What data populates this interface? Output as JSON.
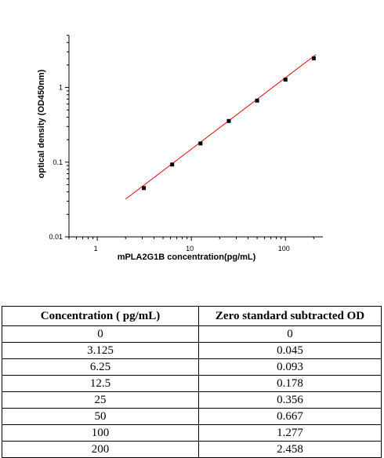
{
  "chart_data": {
    "type": "scatter",
    "xlabel": "mPLA2G1B  concentration(pg/mL)",
    "ylabel": "optical density (OD450nm)",
    "x_scale": "log",
    "y_scale": "log",
    "xlim": [
      0.5,
      250
    ],
    "ylim": [
      0.01,
      5
    ],
    "x_ticks": [
      {
        "value": 1,
        "label": "1"
      },
      {
        "value": 10,
        "label": "10"
      },
      {
        "value": 100,
        "label": "100"
      }
    ],
    "y_ticks": [
      {
        "value": 0.01,
        "label": "0.01"
      },
      {
        "value": 0.1,
        "label": "0.1"
      },
      {
        "value": 1,
        "label": "1"
      }
    ],
    "grid": false,
    "series": [
      {
        "type": "scatter",
        "color": "#000000",
        "x": [
          3.125,
          6.25,
          12.5,
          25,
          50,
          100,
          200
        ],
        "y": [
          0.045,
          0.093,
          0.178,
          0.356,
          0.667,
          1.277,
          2.458
        ]
      },
      {
        "type": "line",
        "color": "#e00000",
        "x": [
          2.0,
          210
        ],
        "y": [
          0.032,
          2.75
        ]
      }
    ]
  },
  "table": {
    "headers": [
      "Concentration ( pg/mL)",
      "Zero standard subtracted OD"
    ],
    "rows": [
      [
        "0",
        "0"
      ],
      [
        "3.125",
        "0.045"
      ],
      [
        "6.25",
        "0.093"
      ],
      [
        "12.5",
        "0.178"
      ],
      [
        "25",
        "0.356"
      ],
      [
        "50",
        "0.667"
      ],
      [
        "100",
        "1.277"
      ],
      [
        "200",
        "2.458"
      ]
    ]
  }
}
